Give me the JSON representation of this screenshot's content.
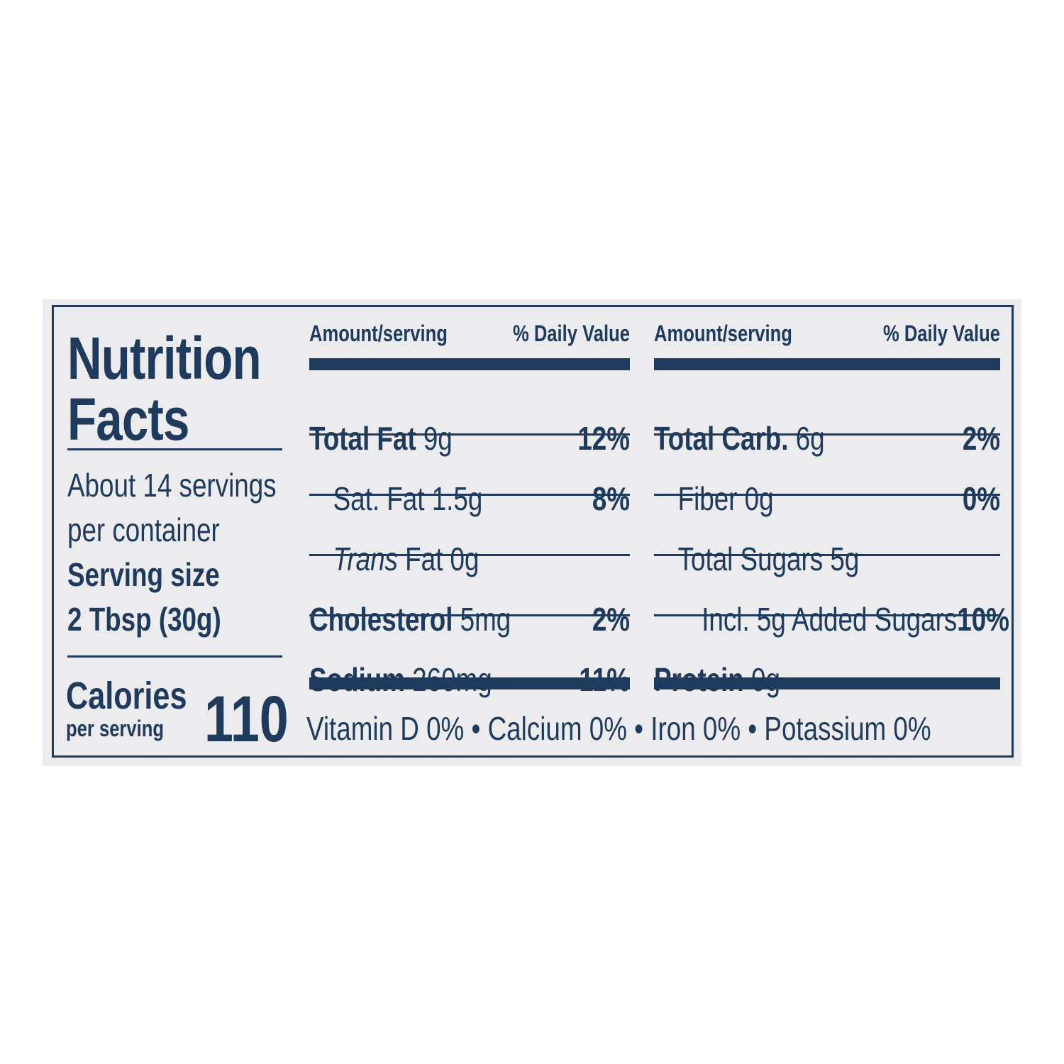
{
  "title_line1": "Nutrition",
  "title_line2": "Facts",
  "servings_line1": "About 14 servings",
  "servings_line2": "per container",
  "serving_size_label": "Serving size",
  "serving_size_value": "2 Tbsp (30g)",
  "calories_label": "Calories",
  "calories_sub": "per serving",
  "calories_value": "110",
  "header": {
    "amount": "Amount/serving",
    "dv": "% Daily Value"
  },
  "left_rows": [
    {
      "name": "Total Fat",
      "amount": "9g",
      "dv": "12%"
    },
    {
      "name": "Sat. Fat",
      "amount": "1.5g",
      "dv": "8%"
    },
    {
      "name": "Trans",
      "amount": "Fat 0g",
      "dv": ""
    },
    {
      "name": "Cholesterol",
      "amount": "5mg",
      "dv": "2%"
    },
    {
      "name": "Sodium",
      "amount": "260mg",
      "dv": "11%"
    }
  ],
  "right_rows": [
    {
      "name": "Total Carb.",
      "amount": "6g",
      "dv": "2%"
    },
    {
      "name": "Fiber",
      "amount": "0g",
      "dv": "0%"
    },
    {
      "name": "Total Sugars",
      "amount": "5g",
      "dv": ""
    },
    {
      "name": "Incl. 5g Added Sugars",
      "amount": "",
      "dv": "10%"
    },
    {
      "name": "Protein",
      "amount": "0g",
      "dv": ""
    }
  ],
  "vitamins": "Vitamin D 0% • Calcium 0% • Iron 0% • Potassium 0%",
  "colors": {
    "ink": "#1e3a5c",
    "panel": "#ecebee"
  }
}
